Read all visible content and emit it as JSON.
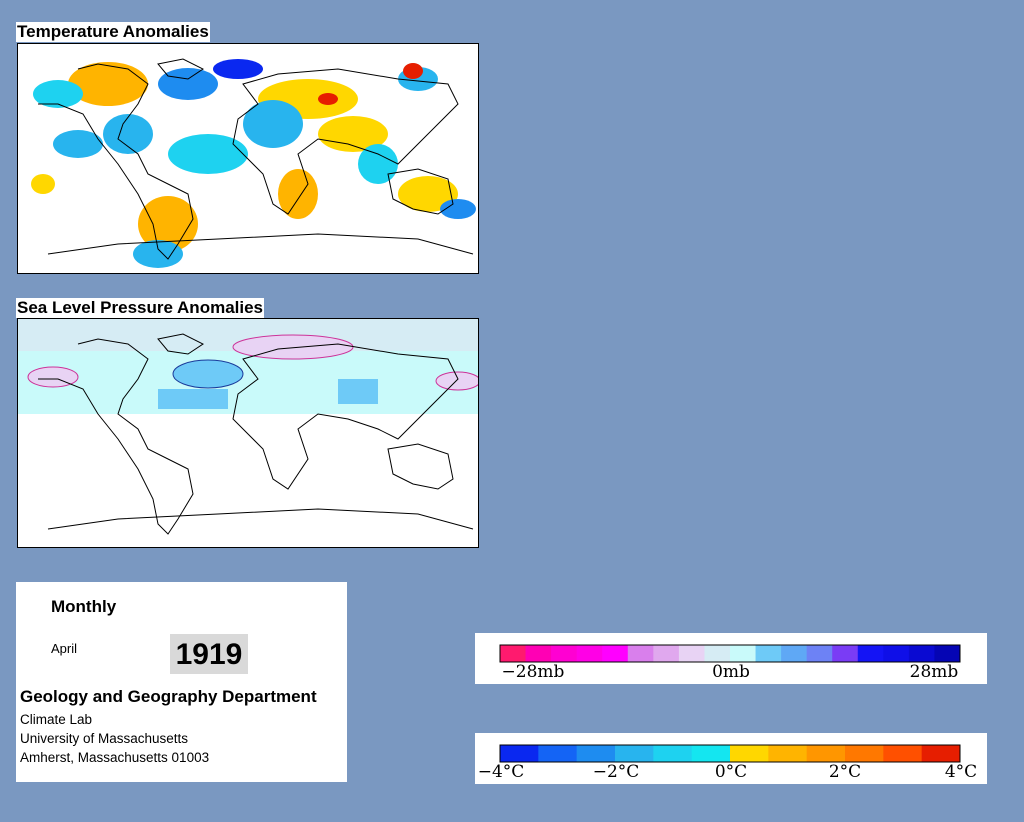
{
  "temperature_panel": {
    "title": "Temperature Anomalies"
  },
  "pressure_panel": {
    "title": "Sea Level Pressure Anomalies"
  },
  "info": {
    "frequency": "Monthly",
    "month": "April",
    "year": "1919",
    "department": "Geology and Geography Department",
    "lab": "Climate Lab",
    "university": "University of Massachusetts",
    "address": "Amherst, Massachusetts 01003"
  },
  "pressure_legend": {
    "labels": [
      "−28mb",
      "0mb",
      "28mb"
    ],
    "colors": [
      "#ff1a6e",
      "#ff00b4",
      "#ff00d2",
      "#ff00e6",
      "#ff00ff",
      "#d97fec",
      "#e0a8ee",
      "#e8d3f4",
      "#d6ecf4",
      "#c9fafa",
      "#6ecaf7",
      "#5fa8f5",
      "#6d82f5",
      "#7a3cf5",
      "#1414f5",
      "#0f0fe8",
      "#0a0ad2",
      "#0505b4"
    ]
  },
  "temperature_legend": {
    "labels": [
      "−4°C",
      "−2°C",
      "0°C",
      "2°C",
      "4°C"
    ],
    "colors": [
      "#0a28f0",
      "#1464f5",
      "#1e8cf0",
      "#28b4ee",
      "#1ed2f0",
      "#14e6f0",
      "#ffd700",
      "#ffb400",
      "#ff9600",
      "#ff7800",
      "#ff5000",
      "#e61e00"
    ]
  },
  "colors": {
    "background": "#7a98c1"
  }
}
